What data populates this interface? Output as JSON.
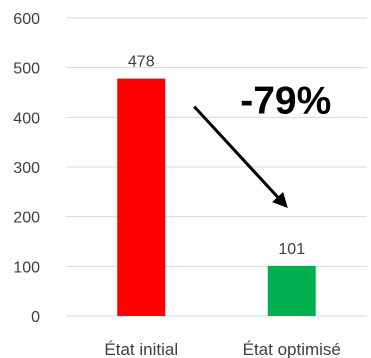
{
  "chart_data": {
    "type": "bar",
    "categories": [
      "État initial",
      "État optimisé"
    ],
    "values": [
      478,
      101
    ],
    "bar_colors": [
      "#ff0000",
      "#00b050"
    ],
    "value_labels": [
      "478",
      "101"
    ],
    "ylim": [
      0,
      600
    ],
    "yticks": [
      0,
      100,
      200,
      300,
      400,
      500,
      600
    ],
    "ytick_labels": [
      "0",
      "100",
      "200",
      "300",
      "400",
      "500",
      "600"
    ],
    "grid": true,
    "legend": "none",
    "annotation": {
      "text": "-79%",
      "arrow_from": "État initial",
      "arrow_to": "État optimisé"
    },
    "gridline_color": "#d9d9d9",
    "text_color": "#404040"
  }
}
